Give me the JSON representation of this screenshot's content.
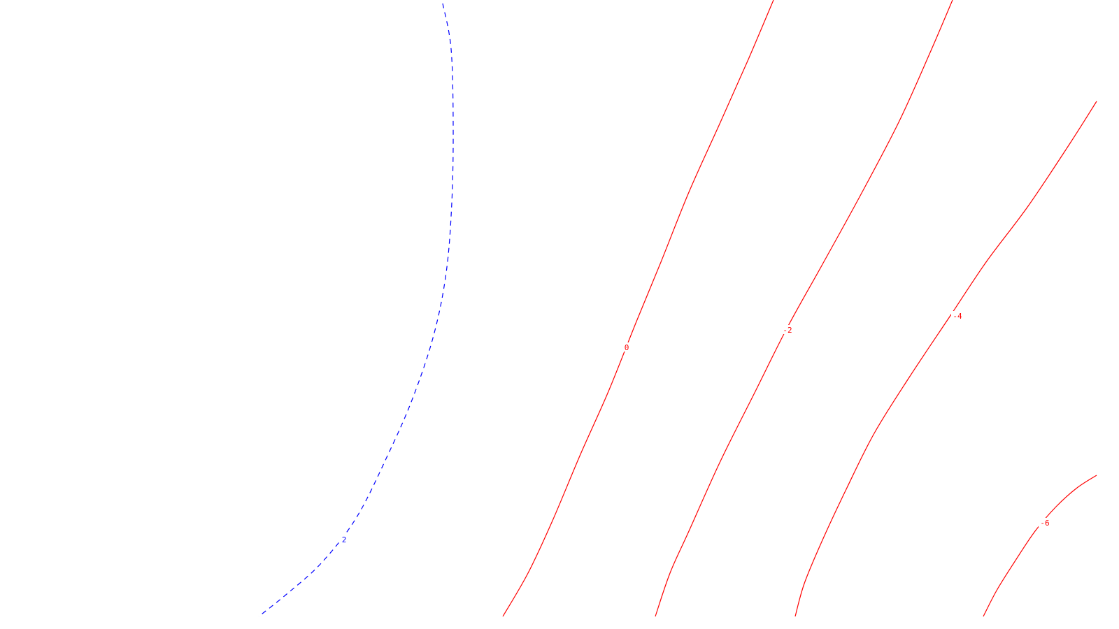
{
  "chart_data": {
    "type": "contour",
    "title": "",
    "xlabel": "",
    "ylabel": "",
    "grid": false,
    "axes_visible": false,
    "legend": "none",
    "colors": {
      "negative": "#ff0000",
      "positive": "#0000ff",
      "background": "#ffffff"
    },
    "levels": [
      {
        "value": 2,
        "label": "2",
        "line_style": "dashed",
        "color": "#0000ff",
        "path": [
          [
            633,
            5
          ],
          [
            645,
            70
          ],
          [
            648,
            180
          ],
          [
            646,
            290
          ],
          [
            638,
            390
          ],
          [
            620,
            480
          ],
          [
            590,
            570
          ],
          [
            555,
            650
          ],
          [
            510,
            740
          ],
          [
            460,
            805
          ],
          [
            410,
            850
          ],
          [
            370,
            882
          ]
        ],
        "label_at": [
          492,
          772
        ]
      },
      {
        "value": 0,
        "label": "0",
        "line_style": "solid",
        "color": "#ff0000",
        "path": [
          [
            1106,
            0
          ],
          [
            1070,
            85
          ],
          [
            1030,
            175
          ],
          [
            985,
            275
          ],
          [
            945,
            375
          ],
          [
            910,
            460
          ],
          [
            870,
            560
          ],
          [
            830,
            650
          ],
          [
            790,
            745
          ],
          [
            755,
            820
          ],
          [
            719,
            882
          ]
        ],
        "label_at": [
          896,
          497
        ]
      },
      {
        "value": -2,
        "label": "-2",
        "line_style": "solid",
        "color": "#ff0000",
        "path": [
          [
            1362,
            0
          ],
          [
            1330,
            75
          ],
          [
            1285,
            175
          ],
          [
            1230,
            280
          ],
          [
            1175,
            380
          ],
          [
            1125,
            470
          ],
          [
            1080,
            560
          ],
          [
            1030,
            660
          ],
          [
            985,
            760
          ],
          [
            958,
            820
          ],
          [
            937,
            882
          ]
        ],
        "label_at": [
          1126,
          472
        ]
      },
      {
        "value": -4,
        "label": "-4",
        "line_style": "solid",
        "color": "#ff0000",
        "path": [
          [
            1568,
            145
          ],
          [
            1530,
            205
          ],
          [
            1470,
            295
          ],
          [
            1410,
            375
          ],
          [
            1360,
            450
          ],
          [
            1300,
            540
          ],
          [
            1250,
            620
          ],
          [
            1210,
            700
          ],
          [
            1175,
            775
          ],
          [
            1150,
            835
          ],
          [
            1137,
            882
          ]
        ],
        "label_at": [
          1369,
          452
        ]
      },
      {
        "value": -6,
        "label": "-6",
        "line_style": "solid",
        "color": "#ff0000",
        "path": [
          [
            1568,
            680
          ],
          [
            1540,
            698
          ],
          [
            1510,
            725
          ],
          [
            1480,
            760
          ],
          [
            1450,
            805
          ],
          [
            1425,
            845
          ],
          [
            1406,
            882
          ]
        ],
        "label_at": [
          1494,
          748
        ]
      }
    ]
  }
}
